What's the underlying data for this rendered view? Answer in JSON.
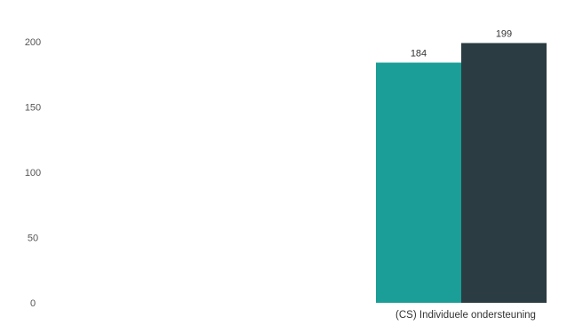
{
  "chart_data": {
    "type": "bar",
    "categories": [
      "(CS) Individuele ondersteuning"
    ],
    "series": [
      {
        "values": [
          184
        ],
        "color": "#1a9e97"
      },
      {
        "values": [
          199
        ],
        "color": "#2b3c42"
      }
    ],
    "y_ticks": [
      "0",
      "50",
      "100",
      "150",
      "200"
    ],
    "ylim": [
      0,
      200
    ],
    "grid": false,
    "legend": "none",
    "title": "",
    "xlabel": "",
    "ylabel": ""
  }
}
